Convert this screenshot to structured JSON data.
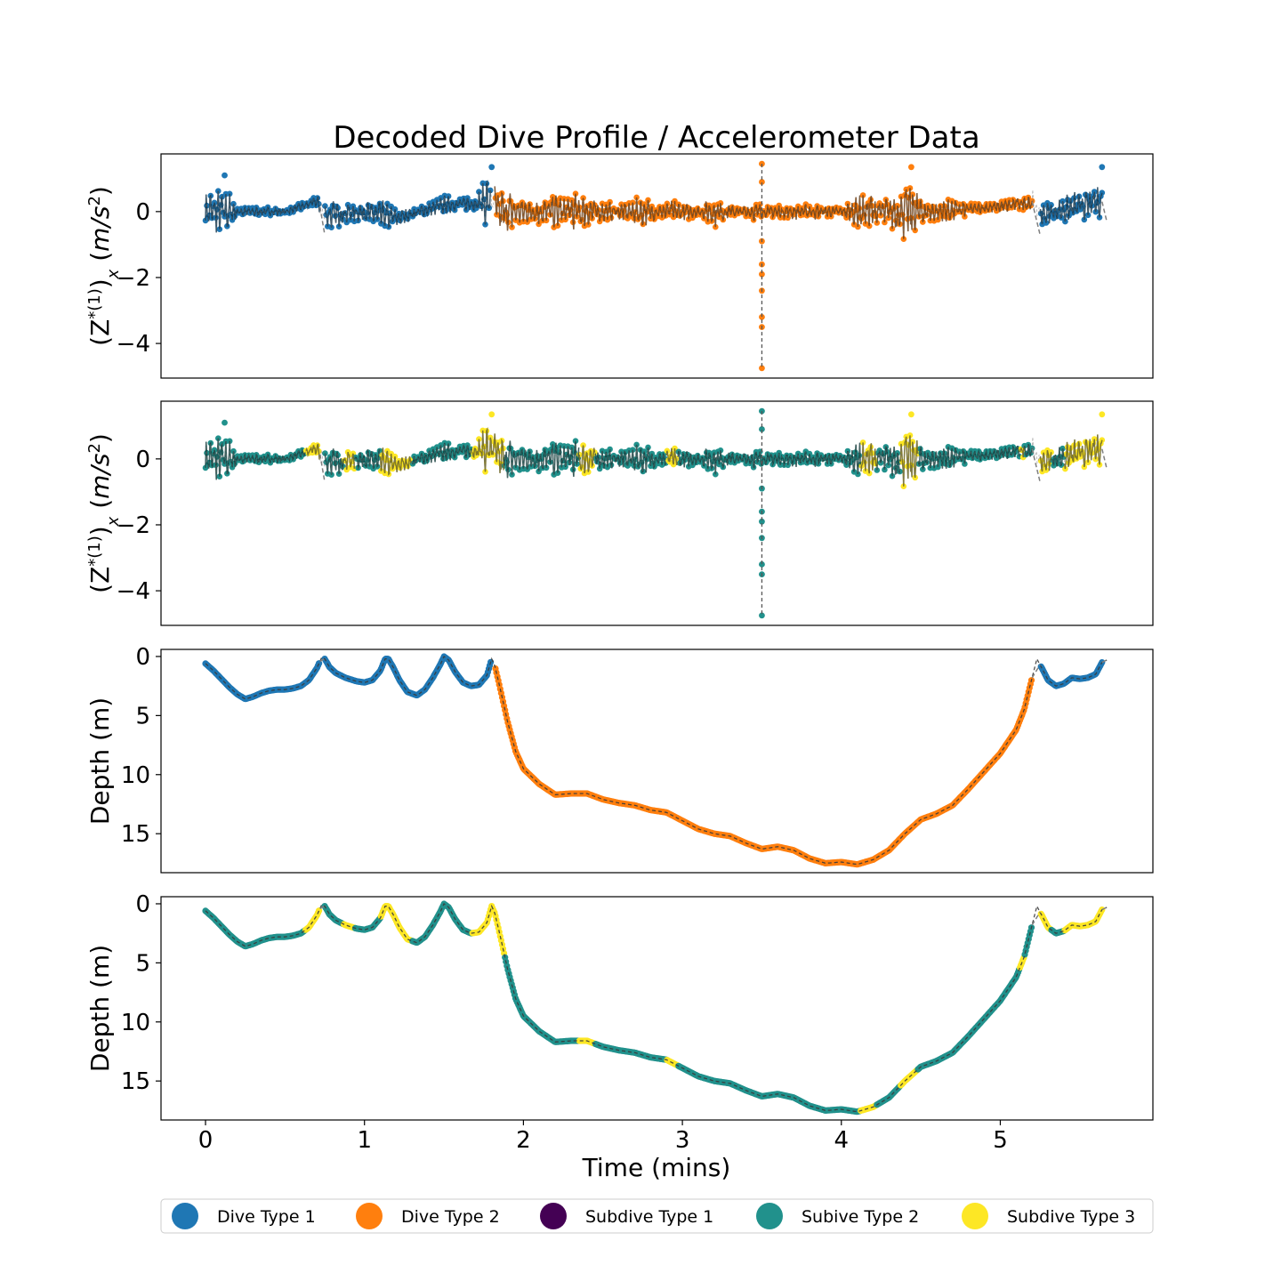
{
  "chart_data": {
    "type": "scatter",
    "title": "Decoded Dive Profile / Accelerometer Data",
    "xlabel": "Time (mins)",
    "xlim": [
      -0.28,
      5.96
    ],
    "xticks": [
      "0",
      "1",
      "2",
      "3",
      "4",
      "5"
    ],
    "colors": {
      "dive_type_1": "#1f77b4",
      "dive_type_2": "#ff7f0e",
      "subdive_type_1": "#440154",
      "subdive_type_2": "#21918c",
      "subdive_type_3": "#fde725",
      "connector": "#7f7f7f"
    },
    "legend": {
      "placement": "bottom",
      "entries": [
        {
          "label": "Dive Type 1",
          "color": "#1f77b4"
        },
        {
          "label": "Dive Type 2",
          "color": "#ff7f0e"
        },
        {
          "label": "Subdive Type 1",
          "color": "#440154"
        },
        {
          "label": "Subive Type 2",
          "color": "#21918c"
        },
        {
          "label": "Subdive Type 3",
          "color": "#fde725"
        }
      ]
    },
    "panels": [
      {
        "kind": "accel",
        "coloring": "dive",
        "ylabel": "(Z*(1))x (m/s2)",
        "ylim": [
          -5.05,
          1.75
        ],
        "yticks": [
          "0",
          "−2",
          "−4"
        ],
        "ytick_values": [
          0,
          -2,
          -4
        ]
      },
      {
        "kind": "accel",
        "coloring": "subdive",
        "ylabel": "(Z*(1))x (m/s2)",
        "ylim": [
          -5.05,
          1.75
        ],
        "yticks": [
          "0",
          "−2",
          "−4"
        ],
        "ytick_values": [
          0,
          -2,
          -4
        ]
      },
      {
        "kind": "depth",
        "coloring": "dive",
        "ylabel": "Depth (m)",
        "ylim": [
          18.3,
          -0.6
        ],
        "yticks": [
          "0",
          "5",
          "10",
          "15"
        ],
        "ytick_values": [
          0,
          5,
          10,
          15
        ]
      },
      {
        "kind": "depth",
        "coloring": "subdive",
        "ylabel": "Depth (m)",
        "ylim": [
          18.3,
          -0.6
        ],
        "yticks": [
          "0",
          "5",
          "10",
          "15"
        ],
        "ytick_values": [
          0,
          5,
          10,
          15
        ]
      }
    ],
    "depth_profile": {
      "t": [
        0.0,
        0.05,
        0.1,
        0.15,
        0.2,
        0.25,
        0.3,
        0.35,
        0.4,
        0.45,
        0.5,
        0.55,
        0.6,
        0.65,
        0.7,
        0.73,
        0.75,
        0.78,
        0.82,
        0.88,
        0.95,
        1.0,
        1.05,
        1.1,
        1.13,
        1.15,
        1.18,
        1.22,
        1.27,
        1.33,
        1.38,
        1.43,
        1.48,
        1.5,
        1.53,
        1.57,
        1.62,
        1.67,
        1.72,
        1.77,
        1.8,
        1.82,
        1.85,
        1.9,
        1.95,
        2.0,
        2.1,
        2.2,
        2.3,
        2.4,
        2.5,
        2.6,
        2.7,
        2.8,
        2.9,
        3.0,
        3.1,
        3.2,
        3.3,
        3.4,
        3.5,
        3.6,
        3.7,
        3.8,
        3.9,
        4.0,
        4.1,
        4.2,
        4.3,
        4.4,
        4.5,
        4.6,
        4.7,
        4.8,
        4.9,
        5.0,
        5.1,
        5.15,
        5.2,
        5.23,
        5.27,
        5.3,
        5.35,
        5.4,
        5.45,
        5.5,
        5.55,
        5.6,
        5.64,
        5.67
      ],
      "depth": [
        0.6,
        1.2,
        1.9,
        2.6,
        3.2,
        3.6,
        3.4,
        3.1,
        2.9,
        2.8,
        2.8,
        2.7,
        2.5,
        2.0,
        1.0,
        0.1,
        0.2,
        0.9,
        1.4,
        1.8,
        2.1,
        2.2,
        2.0,
        1.2,
        0.2,
        0.2,
        0.9,
        2.0,
        3.0,
        3.3,
        2.8,
        1.8,
        0.6,
        0.0,
        0.3,
        1.3,
        2.2,
        2.5,
        2.4,
        1.6,
        0.2,
        0.8,
        2.5,
        5.5,
        8.0,
        9.5,
        10.8,
        11.7,
        11.6,
        11.6,
        12.1,
        12.4,
        12.6,
        13.0,
        13.2,
        13.9,
        14.6,
        15.0,
        15.2,
        15.8,
        16.3,
        16.1,
        16.4,
        17.1,
        17.5,
        17.4,
        17.6,
        17.2,
        16.4,
        15.0,
        13.8,
        13.3,
        12.6,
        11.2,
        9.7,
        8.2,
        6.2,
        4.5,
        1.8,
        0.2,
        1.2,
        2.0,
        2.5,
        2.3,
        1.8,
        1.9,
        1.8,
        1.5,
        0.5,
        0.3
      ],
      "dive_segments": [
        {
          "t": [
            0.0,
            0.72
          ],
          "type": "Dive Type 1"
        },
        {
          "t": [
            0.75,
            1.8
          ],
          "type": "Dive Type 1"
        },
        {
          "t": [
            1.82,
            5.2
          ],
          "type": "Dive Type 2"
        },
        {
          "t": [
            5.25,
            5.64
          ],
          "type": "Dive Type 1"
        }
      ],
      "subdive_segments": [
        {
          "t": [
            0.0,
            0.63
          ],
          "type": "Subive Type 2"
        },
        {
          "t": [
            0.63,
            0.72
          ],
          "type": "Subdive Type 3"
        },
        {
          "t": [
            0.75,
            0.87
          ],
          "type": "Subive Type 2"
        },
        {
          "t": [
            0.87,
            0.94
          ],
          "type": "Subdive Type 3"
        },
        {
          "t": [
            0.94,
            1.1
          ],
          "type": "Subive Type 2"
        },
        {
          "t": [
            1.1,
            1.3
          ],
          "type": "Subdive Type 3"
        },
        {
          "t": [
            1.3,
            1.68
          ],
          "type": "Subive Type 2"
        },
        {
          "t": [
            1.68,
            1.88
          ],
          "type": "Subdive Type 3"
        },
        {
          "t": [
            1.88,
            2.35
          ],
          "type": "Subive Type 2"
        },
        {
          "t": [
            2.35,
            2.45
          ],
          "type": "Subdive Type 3"
        },
        {
          "t": [
            2.45,
            2.9
          ],
          "type": "Subive Type 2"
        },
        {
          "t": [
            2.9,
            2.97
          ],
          "type": "Subdive Type 3"
        },
        {
          "t": [
            2.97,
            4.12
          ],
          "type": "Subive Type 2"
        },
        {
          "t": [
            4.12,
            4.22
          ],
          "type": "Subdive Type 3"
        },
        {
          "t": [
            4.22,
            4.37
          ],
          "type": "Subive Type 2"
        },
        {
          "t": [
            4.37,
            4.48
          ],
          "type": "Subdive Type 3"
        },
        {
          "t": [
            4.48,
            5.12
          ],
          "type": "Subive Type 2"
        },
        {
          "t": [
            5.12,
            5.15
          ],
          "type": "Subdive Type 3"
        },
        {
          "t": [
            5.15,
            5.2
          ],
          "type": "Subive Type 2"
        },
        {
          "t": [
            5.25,
            5.32
          ],
          "type": "Subdive Type 3"
        },
        {
          "t": [
            5.32,
            5.4
          ],
          "type": "Subive Type 2"
        },
        {
          "t": [
            5.4,
            5.64
          ],
          "type": "Subdive Type 3"
        }
      ],
      "connector_gaps": [
        [
          0.72,
          0.75
        ],
        [
          5.2,
          5.25
        ],
        [
          5.64,
          5.67
        ]
      ]
    },
    "accel_profile": {
      "envelope_t": [
        0.0,
        0.05,
        0.1,
        0.15,
        0.2,
        0.3,
        0.4,
        0.5,
        0.6,
        0.7,
        0.75,
        0.85,
        0.95,
        1.05,
        1.12,
        1.2,
        1.3,
        1.4,
        1.5,
        1.6,
        1.7,
        1.78,
        1.82,
        1.88,
        1.95,
        2.05,
        2.15,
        2.25,
        2.35,
        2.45,
        2.6,
        2.75,
        2.85,
        2.95,
        3.1,
        3.2,
        3.35,
        3.45,
        3.55,
        3.7,
        3.85,
        4.0,
        4.1,
        4.18,
        4.25,
        4.35,
        4.42,
        4.5,
        4.6,
        4.7,
        4.85,
        5.0,
        5.15,
        5.2,
        5.25,
        5.35,
        5.45,
        5.55,
        5.64
      ],
      "envelope_amp": [
        0.6,
        0.7,
        0.7,
        0.6,
        0.2,
        0.15,
        0.15,
        0.1,
        0.12,
        0.2,
        0.45,
        0.4,
        0.3,
        0.35,
        0.5,
        0.3,
        0.2,
        0.2,
        0.3,
        0.2,
        0.3,
        0.9,
        0.7,
        0.8,
        0.5,
        0.35,
        0.5,
        0.6,
        0.6,
        0.4,
        0.25,
        0.5,
        0.2,
        0.4,
        0.15,
        0.5,
        0.15,
        0.3,
        0.2,
        0.25,
        0.25,
        0.15,
        0.5,
        0.7,
        0.4,
        0.7,
        1.0,
        0.5,
        0.3,
        0.4,
        0.15,
        0.2,
        0.25,
        0.45,
        0.4,
        0.35,
        0.5,
        0.45,
        0.5
      ],
      "drift_t": [
        0.0,
        0.5,
        0.7,
        0.75,
        1.0,
        1.2,
        1.5,
        1.8,
        1.85,
        2.2,
        2.6,
        3.0,
        3.4,
        3.8,
        4.2,
        4.6,
        5.0,
        5.2,
        5.25,
        5.64
      ],
      "drift": [
        0.0,
        0.0,
        0.3,
        -0.1,
        0.0,
        -0.2,
        0.2,
        0.3,
        0.0,
        0.0,
        0.0,
        0.0,
        0.0,
        0.0,
        0.0,
        0.0,
        0.15,
        0.3,
        -0.1,
        0.3
      ],
      "spike_t": 3.5,
      "spike_min": -4.75,
      "spike_max": 1.45,
      "peaks": [
        {
          "t": 0.12,
          "value": 1.1
        },
        {
          "t": 1.8,
          "value": 1.35
        },
        {
          "t": 4.44,
          "value": 1.35
        },
        {
          "t": 5.64,
          "value": 1.35
        }
      ],
      "connector_gaps": [
        [
          0.72,
          0.75
        ],
        [
          5.2,
          5.25
        ],
        [
          5.64,
          5.67
        ]
      ]
    }
  }
}
